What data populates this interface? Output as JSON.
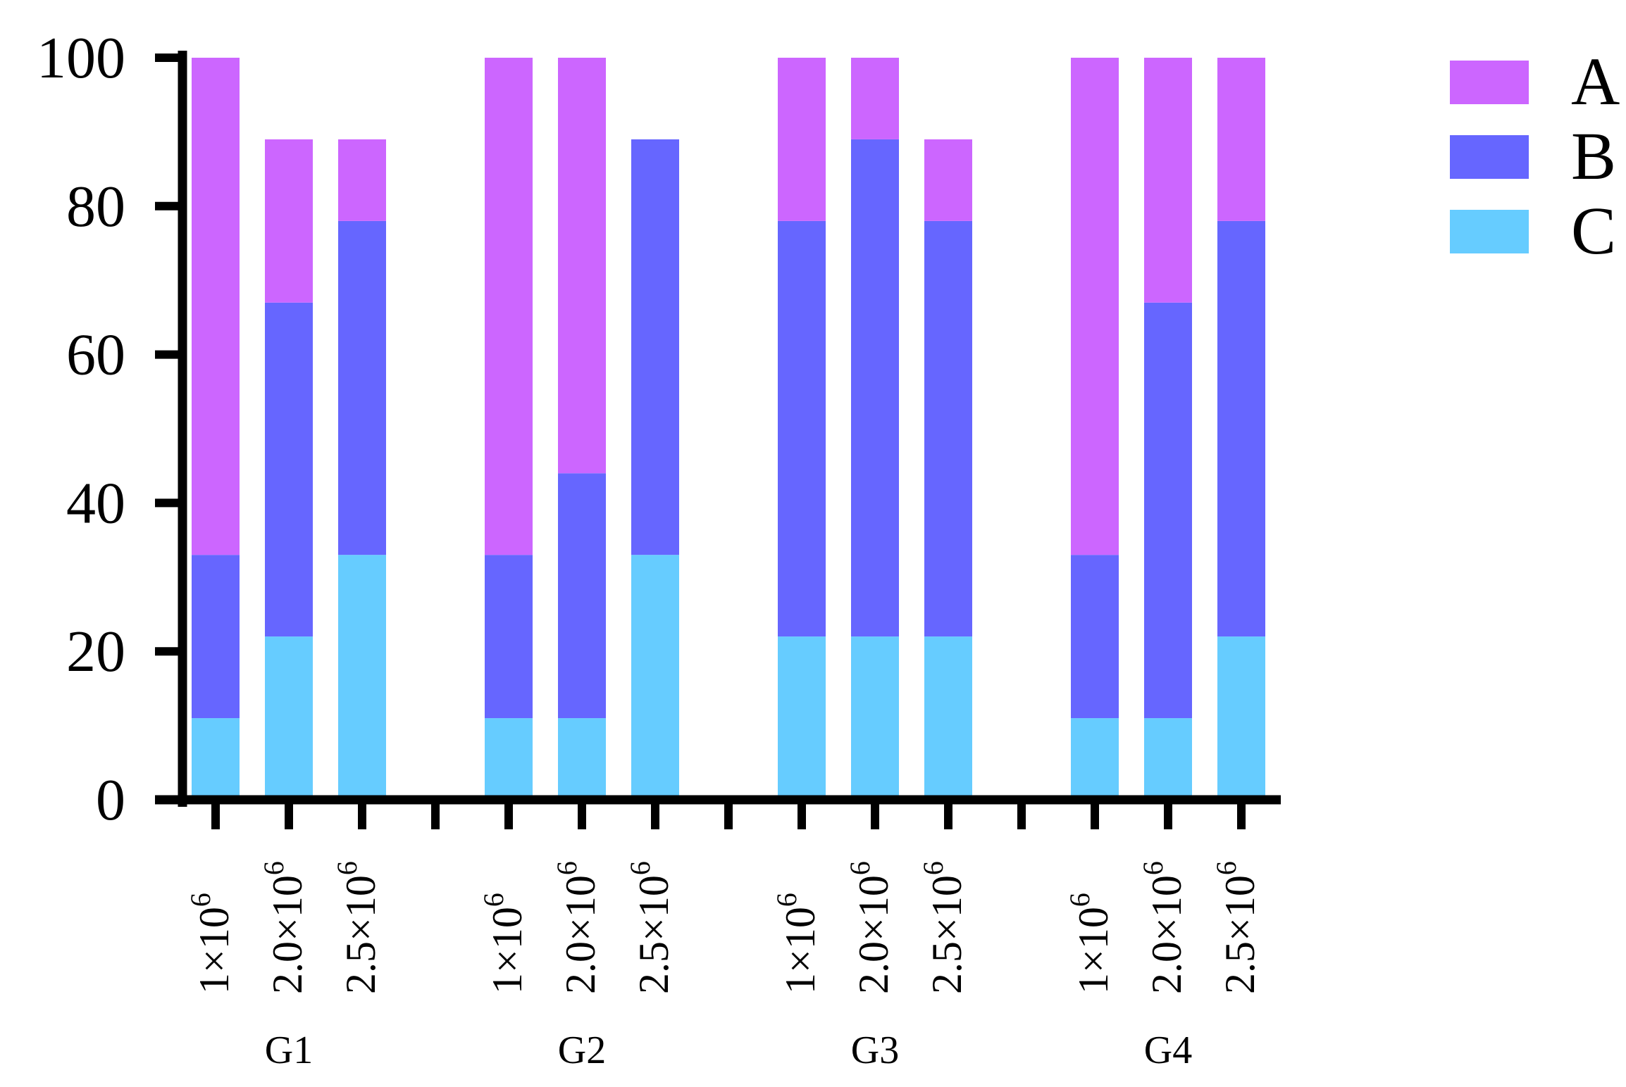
{
  "chart_data": {
    "type": "bar",
    "stacked": true,
    "title": "",
    "xlabel": "",
    "ylabel": "",
    "ylim": [
      0,
      100
    ],
    "yticks": [
      "0",
      "20",
      "40",
      "60",
      "80",
      "100"
    ],
    "groups": [
      "G1",
      "G2",
      "G3",
      "G4"
    ],
    "categories": [
      "1×10",
      "2.0×10",
      "2.5×10"
    ],
    "category_exponent": "6",
    "legend_position": "top-right",
    "series": [
      {
        "name": "C",
        "color": "#66CCFF",
        "values": [
          [
            11,
            22,
            33
          ],
          [
            11,
            11,
            33
          ],
          [
            22,
            22,
            22
          ],
          [
            11,
            11,
            22
          ]
        ]
      },
      {
        "name": "B",
        "color": "#6666FF",
        "values": [
          [
            22,
            45,
            45
          ],
          [
            22,
            33,
            56
          ],
          [
            56,
            67,
            56
          ],
          [
            22,
            56,
            56
          ]
        ]
      },
      {
        "name": "A",
        "color": "#CC66FF",
        "values": [
          [
            67,
            22,
            11
          ],
          [
            67,
            56,
            0
          ],
          [
            22,
            11,
            11
          ],
          [
            67,
            33,
            22
          ]
        ]
      }
    ],
    "legend": [
      {
        "name": "A",
        "color": "#CC66FF"
      },
      {
        "name": "B",
        "color": "#6666FF"
      },
      {
        "name": "C",
        "color": "#66CCFF"
      }
    ]
  }
}
